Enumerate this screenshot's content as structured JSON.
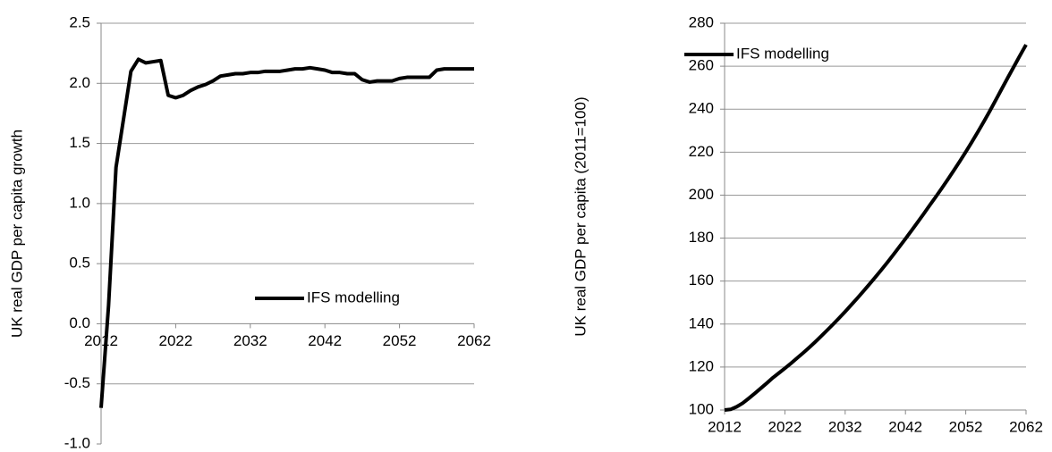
{
  "chart_data": [
    {
      "type": "line",
      "y_label": "UK real GDP per capita growth",
      "x": [
        2012,
        2013,
        2014,
        2015,
        2016,
        2017,
        2018,
        2019,
        2020,
        2021,
        2022,
        2023,
        2024,
        2025,
        2026,
        2027,
        2028,
        2029,
        2030,
        2031,
        2032,
        2033,
        2034,
        2035,
        2036,
        2037,
        2038,
        2039,
        2040,
        2041,
        2042,
        2043,
        2044,
        2045,
        2046,
        2047,
        2048,
        2049,
        2050,
        2051,
        2052,
        2053,
        2054,
        2055,
        2056,
        2057,
        2058,
        2059,
        2060,
        2061,
        2062
      ],
      "series": [
        {
          "name": "IFS modelling",
          "color": "#000000",
          "values": [
            -0.7,
            0.15,
            1.3,
            1.7,
            2.1,
            2.2,
            2.17,
            2.18,
            2.19,
            1.9,
            1.88,
            1.9,
            1.94,
            1.97,
            1.99,
            2.02,
            2.06,
            2.07,
            2.08,
            2.08,
            2.09,
            2.09,
            2.1,
            2.1,
            2.1,
            2.11,
            2.12,
            2.12,
            2.13,
            2.12,
            2.11,
            2.09,
            2.09,
            2.08,
            2.08,
            2.03,
            2.01,
            2.02,
            2.02,
            2.02,
            2.04,
            2.05,
            2.05,
            2.05,
            2.05,
            2.11,
            2.12,
            2.12,
            2.12,
            2.12,
            2.12
          ]
        }
      ],
      "xlim": [
        2012,
        2062
      ],
      "xticks": [
        2012,
        2022,
        2032,
        2042,
        2052,
        2062
      ],
      "ylim": [
        -1,
        2.5
      ],
      "yticks": [
        {
          "value": -1,
          "label": "-1.0"
        },
        {
          "value": -0.5,
          "label": "-0.5"
        },
        {
          "value": 0,
          "label": "0.0"
        },
        {
          "value": 0.5,
          "label": "0.5"
        },
        {
          "value": 1,
          "label": "1.0"
        },
        {
          "value": 1.5,
          "label": "1.5"
        },
        {
          "value": 2,
          "label": "2.0"
        },
        {
          "value": 2.5,
          "label": "2.5"
        }
      ],
      "grid": true,
      "legend": "lower right"
    },
    {
      "type": "line",
      "y_label": "UK real GDP per capita (2011=100)",
      "x": [
        2012,
        2013,
        2014,
        2015,
        2016,
        2017,
        2018,
        2019,
        2020,
        2021,
        2022,
        2023,
        2024,
        2025,
        2026,
        2027,
        2028,
        2029,
        2030,
        2031,
        2032,
        2033,
        2034,
        2035,
        2036,
        2037,
        2038,
        2039,
        2040,
        2041,
        2042,
        2043,
        2044,
        2045,
        2046,
        2047,
        2048,
        2049,
        2050,
        2051,
        2052,
        2053,
        2054,
        2055,
        2056,
        2057,
        2058,
        2059,
        2060,
        2061,
        2062
      ],
      "series": [
        {
          "name": "IFS modelling",
          "color": "#000000",
          "values": [
            100,
            100.3,
            101.5,
            103.2,
            105.4,
            107.7,
            110.1,
            112.5,
            115.0,
            117.2,
            119.4,
            121.7,
            124.1,
            126.5,
            129.0,
            131.6,
            134.3,
            137.1,
            139.9,
            142.8,
            145.8,
            148.9,
            152.0,
            155.2,
            158.5,
            161.8,
            165.2,
            168.7,
            172.3,
            176.0,
            179.7,
            183.5,
            187.3,
            191.2,
            195.2,
            199.1,
            203.1,
            207.2,
            211.4,
            215.7,
            220.1,
            224.7,
            229.4,
            234.2,
            239.2,
            244.4,
            249.6,
            254.8,
            259.9,
            265.0,
            270.0
          ]
        }
      ],
      "xlim": [
        2012,
        2062
      ],
      "xticks": [
        2012,
        2022,
        2032,
        2042,
        2052,
        2062
      ],
      "ylim": [
        100,
        280
      ],
      "yticks": [
        100,
        120,
        140,
        160,
        180,
        200,
        220,
        240,
        260,
        280
      ],
      "grid": true,
      "legend": "upper left"
    }
  ]
}
